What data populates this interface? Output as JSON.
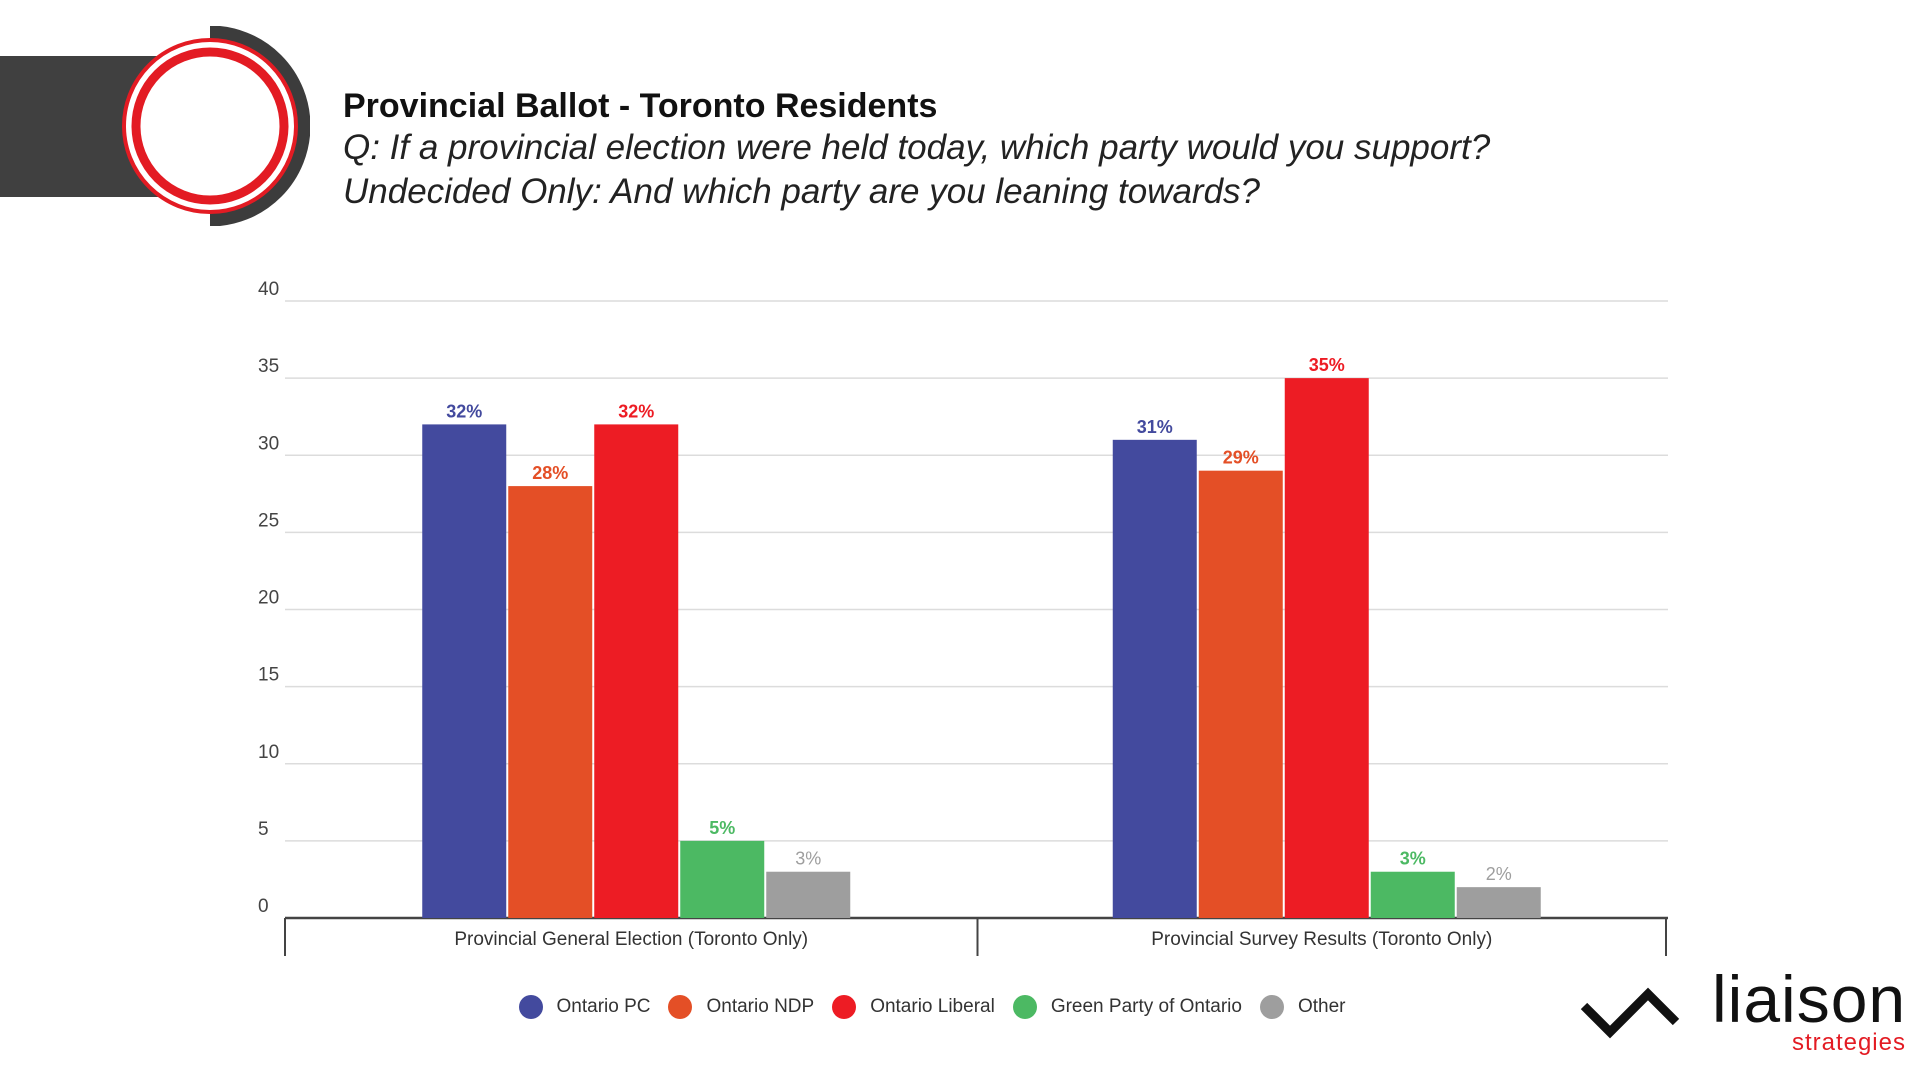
{
  "header": {
    "title": "Provincial Ballot - Toronto Residents",
    "question": "Q: If a provincial election were held today, which party would you support?",
    "undecided": "Undecided Only: And which party are you leaning towards?"
  },
  "brand": {
    "name": "liaison",
    "sub": "strategies",
    "accent": "#e31b23"
  },
  "chart_data": {
    "type": "bar",
    "categories": [
      "Provincial General Election (Toronto Only)",
      "Provincial Survey Results (Toronto Only)"
    ],
    "series": [
      {
        "name": "Ontario PC",
        "color": "#434a9e",
        "values": [
          32,
          31
        ],
        "labels": [
          "32%",
          "31%"
        ]
      },
      {
        "name": "Ontario NDP",
        "color": "#e44f26",
        "values": [
          28,
          29
        ],
        "labels": [
          "28%",
          "29%"
        ]
      },
      {
        "name": "Ontario Liberal",
        "color": "#ed1c24",
        "values": [
          32,
          35
        ],
        "labels": [
          "32%",
          "35%"
        ]
      },
      {
        "name": "Green Party of Ontario",
        "color": "#4cb963",
        "values": [
          5,
          3
        ],
        "labels": [
          "5%",
          "3%"
        ]
      },
      {
        "name": "Other",
        "color": "#9e9e9e",
        "values": [
          3,
          2
        ],
        "labels": [
          "3%",
          "2%"
        ]
      }
    ],
    "yticks": [
      "0",
      "5",
      "10",
      "15",
      "20",
      "25",
      "30",
      "35",
      "40"
    ],
    "ylim": [
      0,
      40
    ],
    "grid": true,
    "legend": "bottom"
  }
}
